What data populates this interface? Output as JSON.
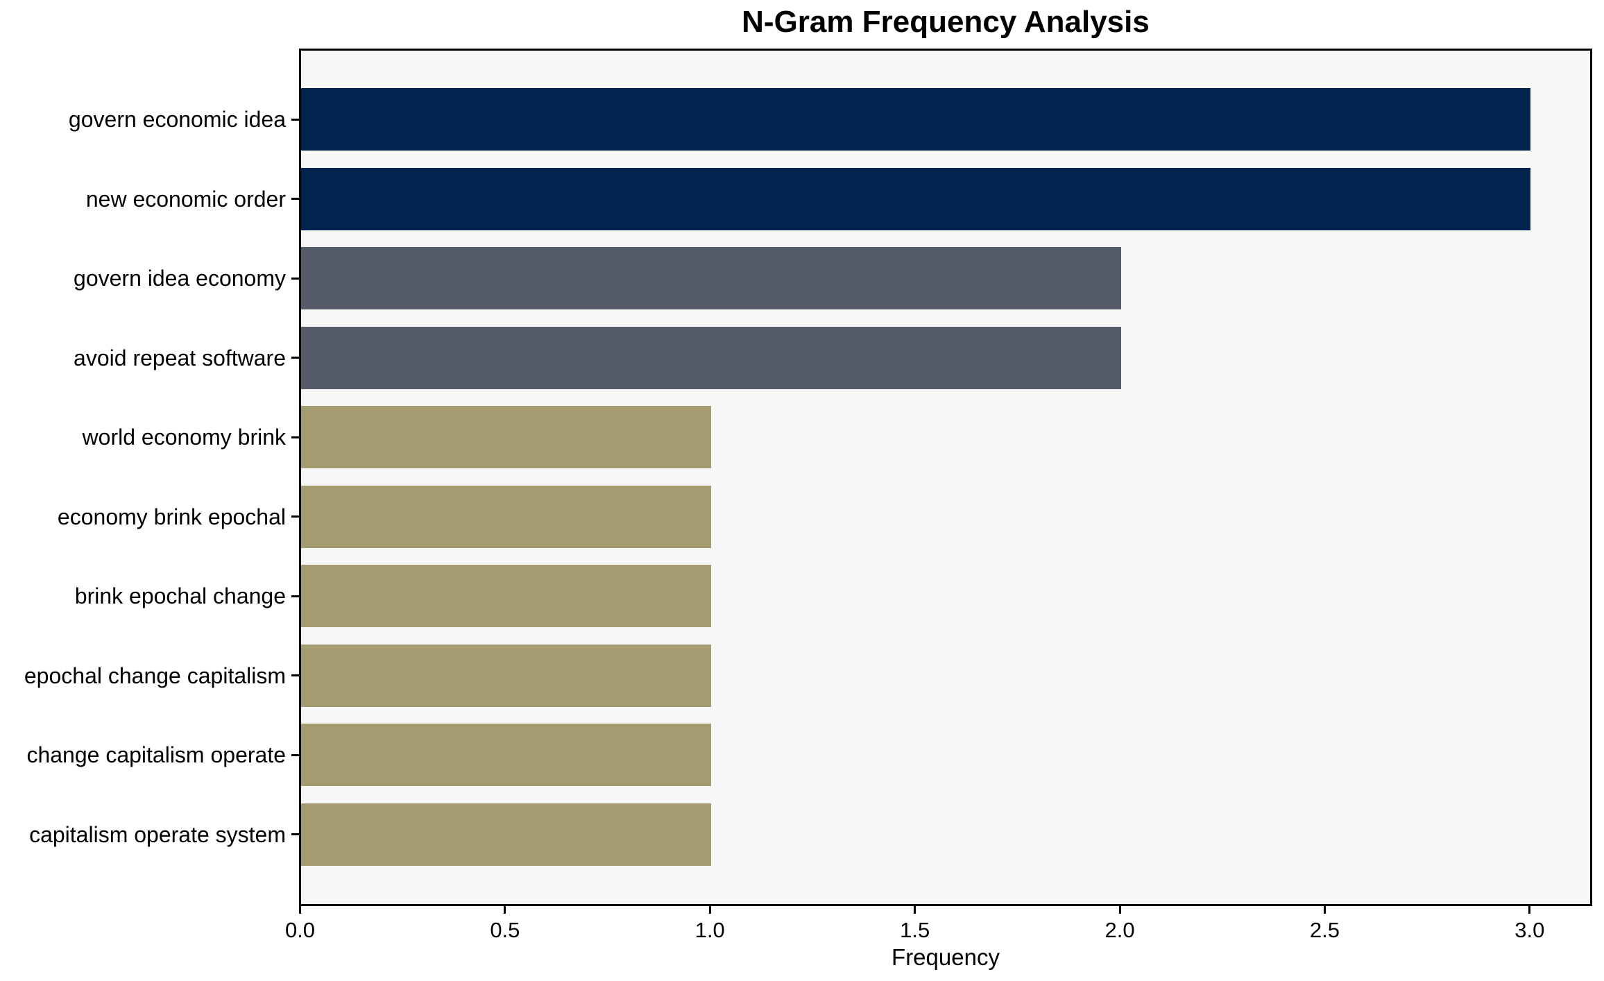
{
  "chart_data": {
    "type": "bar",
    "orientation": "horizontal",
    "title": "N-Gram Frequency Analysis",
    "xlabel": "Frequency",
    "ylabel": "",
    "categories": [
      "govern economic idea",
      "new economic order",
      "govern idea economy",
      "avoid repeat software",
      "world economy brink",
      "economy brink epochal",
      "brink epochal change",
      "epochal change capitalism",
      "change capitalism operate",
      "capitalism operate system"
    ],
    "values": [
      3,
      3,
      2,
      2,
      1,
      1,
      1,
      1,
      1,
      1
    ],
    "bar_colors": [
      "#02234e",
      "#02234e",
      "#565b6a",
      "#565b6a",
      "#a59b71",
      "#a59b71",
      "#a59b71",
      "#a59b71",
      "#a59b71",
      "#a59b71"
    ],
    "xlim": [
      0,
      3.145
    ],
    "xticks": [
      0.0,
      0.5,
      1.0,
      1.5,
      2.0,
      2.5,
      3.0
    ],
    "xtick_labels": [
      "0.0",
      "0.5",
      "1.0",
      "1.5",
      "2.0",
      "2.5",
      "3.0"
    ],
    "grid": false,
    "legend": null,
    "colors": {
      "plot_background": "#f7f7f7",
      "figure_background": "#ffffff",
      "spine": "#000000",
      "text": "#000000"
    }
  }
}
